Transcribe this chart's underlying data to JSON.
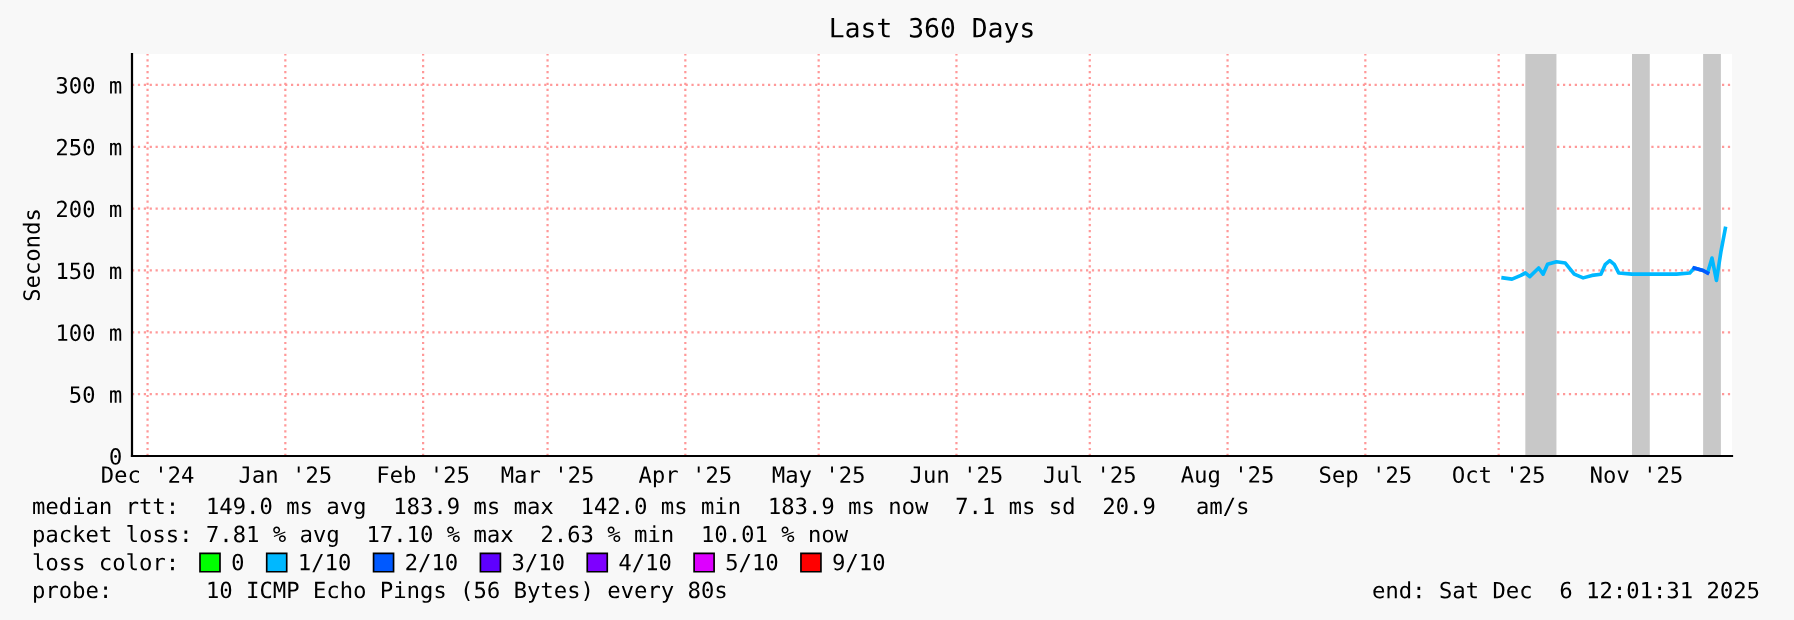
{
  "chart_data": {
    "type": "line",
    "title": "Last 360 Days",
    "ylabel": "Seconds",
    "legend_title": "loss color:",
    "xlim": [
      "2024-12-11T12:00",
      "2025-12-06T12:00"
    ],
    "xticks": [
      {
        "value": "2024-12-15",
        "label": "Dec '24"
      },
      {
        "value": "2025-01-15",
        "label": "Jan '25"
      },
      {
        "value": "2025-02-15",
        "label": "Feb '25"
      },
      {
        "value": "2025-03-15",
        "label": "Mar '25"
      },
      {
        "value": "2025-04-15",
        "label": "Apr '25"
      },
      {
        "value": "2025-05-15",
        "label": "May '25"
      },
      {
        "value": "2025-06-15",
        "label": "Jun '25"
      },
      {
        "value": "2025-07-15",
        "label": "Jul '25"
      },
      {
        "value": "2025-08-15",
        "label": "Aug '25"
      },
      {
        "value": "2025-09-15",
        "label": "Sep '25"
      },
      {
        "value": "2025-10-15",
        "label": "Oct '25"
      },
      {
        "value": "2025-11-15",
        "label": "Nov '25"
      }
    ],
    "ylim": [
      0,
      325
    ],
    "yticks": [
      0,
      {
        "value": 50,
        "label": "50 m"
      },
      {
        "value": 100,
        "label": "100 m"
      },
      {
        "value": 150,
        "label": "150 m"
      },
      {
        "value": 200,
        "label": "200 m"
      },
      {
        "value": 250,
        "label": "250 m"
      },
      {
        "value": 300,
        "label": "300 m"
      }
    ],
    "grid": true,
    "legend": "bottom",
    "marker": "none",
    "line_style": "solid",
    "series": [
      {
        "name": "0",
        "color": "#00ff00"
      },
      {
        "name": "1/10",
        "color": "#00b8ff",
        "x": [
          "2025-10-16",
          "2025-10-18",
          "2025-10-20",
          "2025-10-21",
          "2025-10-22",
          "2025-10-24",
          "2025-10-25",
          "2025-10-26",
          "2025-10-28",
          "2025-10-30",
          "2025-11-01",
          "2025-11-03",
          "2025-11-05",
          "2025-11-07",
          "2025-11-08",
          "2025-11-09",
          "2025-11-10",
          "2025-11-11",
          "2025-11-14",
          "2025-11-19",
          "2025-11-24",
          "2025-11-27",
          "2025-11-28",
          "2025-11-30",
          "2025-12-01",
          "2025-12-02",
          "2025-12-03",
          "2025-12-04",
          "2025-12-05"
        ],
        "values": [
          144,
          143,
          146,
          148,
          145,
          152,
          147,
          155,
          157,
          156,
          147,
          144,
          146,
          147,
          155,
          158,
          155,
          148,
          147,
          147,
          147,
          148,
          152,
          150,
          148,
          160,
          142,
          165,
          184
        ]
      },
      {
        "name": "2/10",
        "color": "#0059ff",
        "x": [
          "2025-11-28",
          "2025-11-30",
          "2025-12-01"
        ],
        "values": [
          152,
          150,
          148
        ]
      },
      {
        "name": "3/10",
        "color": "#5e00ff"
      },
      {
        "name": "4/10",
        "color": "#7e00ff"
      },
      {
        "name": "5/10",
        "color": "#dd00ff"
      },
      {
        "name": "9/10",
        "color": "#ff0000"
      }
    ],
    "bands": [
      {
        "axis": "x",
        "from": "2025-10-21",
        "to": "2025-10-28",
        "color": "#c8c8c8"
      },
      {
        "axis": "x",
        "from": "2025-11-14",
        "to": "2025-11-18",
        "color": "#c8c8c8"
      },
      {
        "axis": "x",
        "from": "2025-11-30",
        "to": "2025-12-04",
        "color": "#c8c8c8"
      }
    ],
    "annotations": [
      "median rtt:  149.0 ms avg  183.9 ms max  142.0 ms min  183.9 ms now  7.1 ms sd  20.9   am/s",
      "packet loss: 7.81 % avg  17.10 % max  2.63 % min  10.01 % now",
      "probe:       10 ICMP Echo Pings (56 Bytes) every 80s",
      "end: Sat Dec  6 12:01:31 2025"
    ]
  }
}
